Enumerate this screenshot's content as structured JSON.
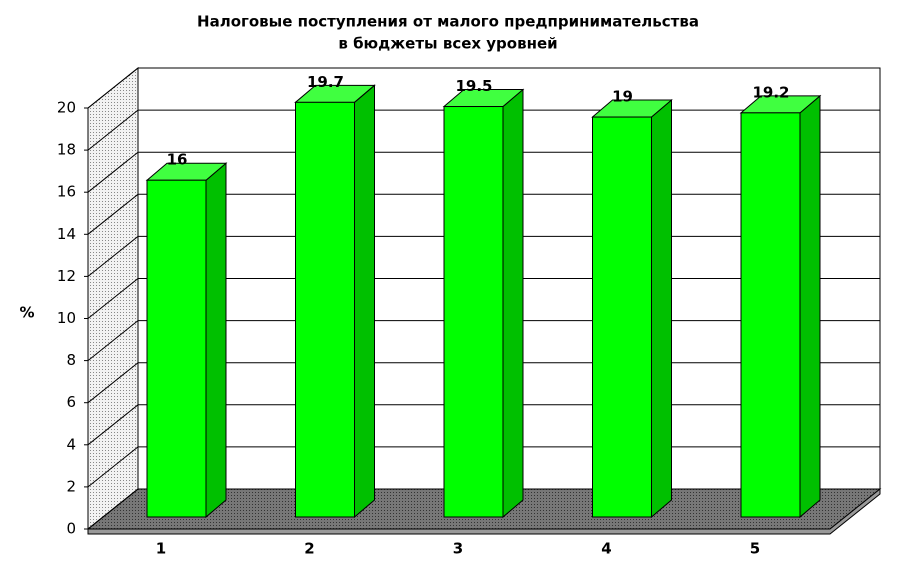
{
  "chart_data": {
    "type": "bar3d",
    "title": [
      "Налоговые поступления от малого предпринимательства",
      "в бюджеты всех уровней"
    ],
    "y_label": "%",
    "categories": [
      "1",
      "2",
      "3",
      "4",
      "5"
    ],
    "values": [
      16,
      19.7,
      19.5,
      19,
      19.2
    ],
    "color": "#00ff00",
    "ylim": [
      0,
      20
    ],
    "yticks": [
      0,
      2,
      4,
      6,
      8,
      10,
      12,
      14,
      16,
      18,
      20
    ],
    "grid": true
  }
}
